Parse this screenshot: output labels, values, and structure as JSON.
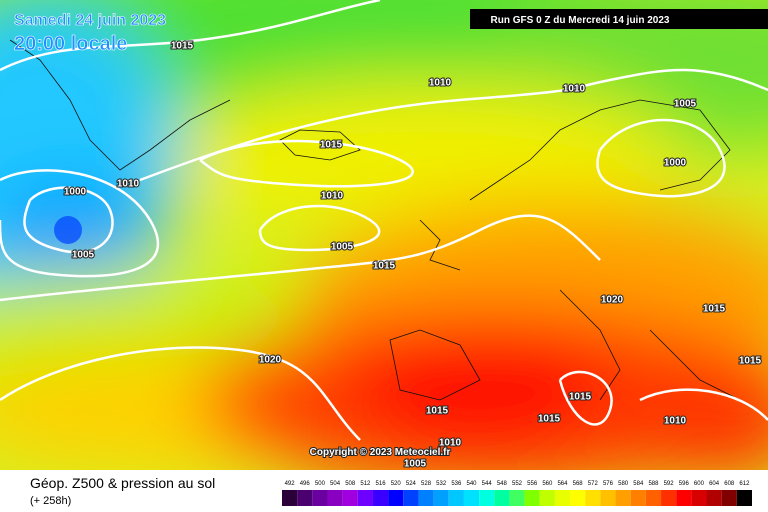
{
  "title": "Samedi 24 juin 2023",
  "subtitle": "20:00 locale",
  "run": "Run GFS 0 Z du Mercredi 14 juin 2023",
  "copyright": "Copyright © 2023 Meteociel.fr",
  "caption": "Géop. Z500 & pression au sol",
  "lead": "(+ 258h)",
  "isobar_labels": [
    1015,
    1010,
    1010,
    1005,
    1015,
    1010,
    1000,
    1000,
    1010,
    1005,
    1005,
    1015,
    1020,
    1015,
    1020,
    1015,
    1015,
    1015,
    1015,
    1010,
    1010,
    1005
  ],
  "scale": {
    "values": [
      492,
      496,
      500,
      504,
      508,
      512,
      516,
      520,
      524,
      528,
      532,
      536,
      540,
      544,
      548,
      552,
      556,
      560,
      564,
      568,
      572,
      576,
      580,
      584,
      588,
      592,
      596,
      600,
      604,
      608,
      612
    ],
    "colors": [
      "#2a0038",
      "#4b0070",
      "#6a00a0",
      "#8a00c0",
      "#a000e0",
      "#6e00ff",
      "#3a00ff",
      "#0000ff",
      "#0040ff",
      "#0080ff",
      "#00a0ff",
      "#00c8ff",
      "#00e0ff",
      "#00ffe0",
      "#00ffa0",
      "#40ff60",
      "#80ff00",
      "#c0ff00",
      "#e8ff00",
      "#ffff00",
      "#ffe000",
      "#ffc000",
      "#ffa000",
      "#ff8000",
      "#ff6000",
      "#ff3000",
      "#ff0000",
      "#d80000",
      "#b00000",
      "#800000",
      "#000000"
    ]
  }
}
